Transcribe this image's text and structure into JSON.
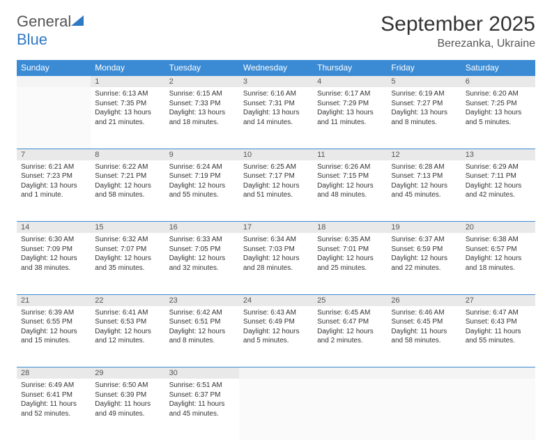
{
  "logo": {
    "text_a": "General",
    "text_b": "Blue"
  },
  "title": "September 2025",
  "location": "Berezanka, Ukraine",
  "colors": {
    "header_bg": "#3b8bd4",
    "header_text": "#ffffff",
    "daynum_bg": "#e9e9e9",
    "border": "#3b8bd4",
    "logo_blue": "#2f78c4"
  },
  "weekdays": [
    "Sunday",
    "Monday",
    "Tuesday",
    "Wednesday",
    "Thursday",
    "Friday",
    "Saturday"
  ],
  "weeks": [
    [
      null,
      {
        "n": "1",
        "sr": "Sunrise: 6:13 AM",
        "ss": "Sunset: 7:35 PM",
        "dl": "Daylight: 13 hours and 21 minutes."
      },
      {
        "n": "2",
        "sr": "Sunrise: 6:15 AM",
        "ss": "Sunset: 7:33 PM",
        "dl": "Daylight: 13 hours and 18 minutes."
      },
      {
        "n": "3",
        "sr": "Sunrise: 6:16 AM",
        "ss": "Sunset: 7:31 PM",
        "dl": "Daylight: 13 hours and 14 minutes."
      },
      {
        "n": "4",
        "sr": "Sunrise: 6:17 AM",
        "ss": "Sunset: 7:29 PM",
        "dl": "Daylight: 13 hours and 11 minutes."
      },
      {
        "n": "5",
        "sr": "Sunrise: 6:19 AM",
        "ss": "Sunset: 7:27 PM",
        "dl": "Daylight: 13 hours and 8 minutes."
      },
      {
        "n": "6",
        "sr": "Sunrise: 6:20 AM",
        "ss": "Sunset: 7:25 PM",
        "dl": "Daylight: 13 hours and 5 minutes."
      }
    ],
    [
      {
        "n": "7",
        "sr": "Sunrise: 6:21 AM",
        "ss": "Sunset: 7:23 PM",
        "dl": "Daylight: 13 hours and 1 minute."
      },
      {
        "n": "8",
        "sr": "Sunrise: 6:22 AM",
        "ss": "Sunset: 7:21 PM",
        "dl": "Daylight: 12 hours and 58 minutes."
      },
      {
        "n": "9",
        "sr": "Sunrise: 6:24 AM",
        "ss": "Sunset: 7:19 PM",
        "dl": "Daylight: 12 hours and 55 minutes."
      },
      {
        "n": "10",
        "sr": "Sunrise: 6:25 AM",
        "ss": "Sunset: 7:17 PM",
        "dl": "Daylight: 12 hours and 51 minutes."
      },
      {
        "n": "11",
        "sr": "Sunrise: 6:26 AM",
        "ss": "Sunset: 7:15 PM",
        "dl": "Daylight: 12 hours and 48 minutes."
      },
      {
        "n": "12",
        "sr": "Sunrise: 6:28 AM",
        "ss": "Sunset: 7:13 PM",
        "dl": "Daylight: 12 hours and 45 minutes."
      },
      {
        "n": "13",
        "sr": "Sunrise: 6:29 AM",
        "ss": "Sunset: 7:11 PM",
        "dl": "Daylight: 12 hours and 42 minutes."
      }
    ],
    [
      {
        "n": "14",
        "sr": "Sunrise: 6:30 AM",
        "ss": "Sunset: 7:09 PM",
        "dl": "Daylight: 12 hours and 38 minutes."
      },
      {
        "n": "15",
        "sr": "Sunrise: 6:32 AM",
        "ss": "Sunset: 7:07 PM",
        "dl": "Daylight: 12 hours and 35 minutes."
      },
      {
        "n": "16",
        "sr": "Sunrise: 6:33 AM",
        "ss": "Sunset: 7:05 PM",
        "dl": "Daylight: 12 hours and 32 minutes."
      },
      {
        "n": "17",
        "sr": "Sunrise: 6:34 AM",
        "ss": "Sunset: 7:03 PM",
        "dl": "Daylight: 12 hours and 28 minutes."
      },
      {
        "n": "18",
        "sr": "Sunrise: 6:35 AM",
        "ss": "Sunset: 7:01 PM",
        "dl": "Daylight: 12 hours and 25 minutes."
      },
      {
        "n": "19",
        "sr": "Sunrise: 6:37 AM",
        "ss": "Sunset: 6:59 PM",
        "dl": "Daylight: 12 hours and 22 minutes."
      },
      {
        "n": "20",
        "sr": "Sunrise: 6:38 AM",
        "ss": "Sunset: 6:57 PM",
        "dl": "Daylight: 12 hours and 18 minutes."
      }
    ],
    [
      {
        "n": "21",
        "sr": "Sunrise: 6:39 AM",
        "ss": "Sunset: 6:55 PM",
        "dl": "Daylight: 12 hours and 15 minutes."
      },
      {
        "n": "22",
        "sr": "Sunrise: 6:41 AM",
        "ss": "Sunset: 6:53 PM",
        "dl": "Daylight: 12 hours and 12 minutes."
      },
      {
        "n": "23",
        "sr": "Sunrise: 6:42 AM",
        "ss": "Sunset: 6:51 PM",
        "dl": "Daylight: 12 hours and 8 minutes."
      },
      {
        "n": "24",
        "sr": "Sunrise: 6:43 AM",
        "ss": "Sunset: 6:49 PM",
        "dl": "Daylight: 12 hours and 5 minutes."
      },
      {
        "n": "25",
        "sr": "Sunrise: 6:45 AM",
        "ss": "Sunset: 6:47 PM",
        "dl": "Daylight: 12 hours and 2 minutes."
      },
      {
        "n": "26",
        "sr": "Sunrise: 6:46 AM",
        "ss": "Sunset: 6:45 PM",
        "dl": "Daylight: 11 hours and 58 minutes."
      },
      {
        "n": "27",
        "sr": "Sunrise: 6:47 AM",
        "ss": "Sunset: 6:43 PM",
        "dl": "Daylight: 11 hours and 55 minutes."
      }
    ],
    [
      {
        "n": "28",
        "sr": "Sunrise: 6:49 AM",
        "ss": "Sunset: 6:41 PM",
        "dl": "Daylight: 11 hours and 52 minutes."
      },
      {
        "n": "29",
        "sr": "Sunrise: 6:50 AM",
        "ss": "Sunset: 6:39 PM",
        "dl": "Daylight: 11 hours and 49 minutes."
      },
      {
        "n": "30",
        "sr": "Sunrise: 6:51 AM",
        "ss": "Sunset: 6:37 PM",
        "dl": "Daylight: 11 hours and 45 minutes."
      },
      null,
      null,
      null,
      null
    ]
  ]
}
